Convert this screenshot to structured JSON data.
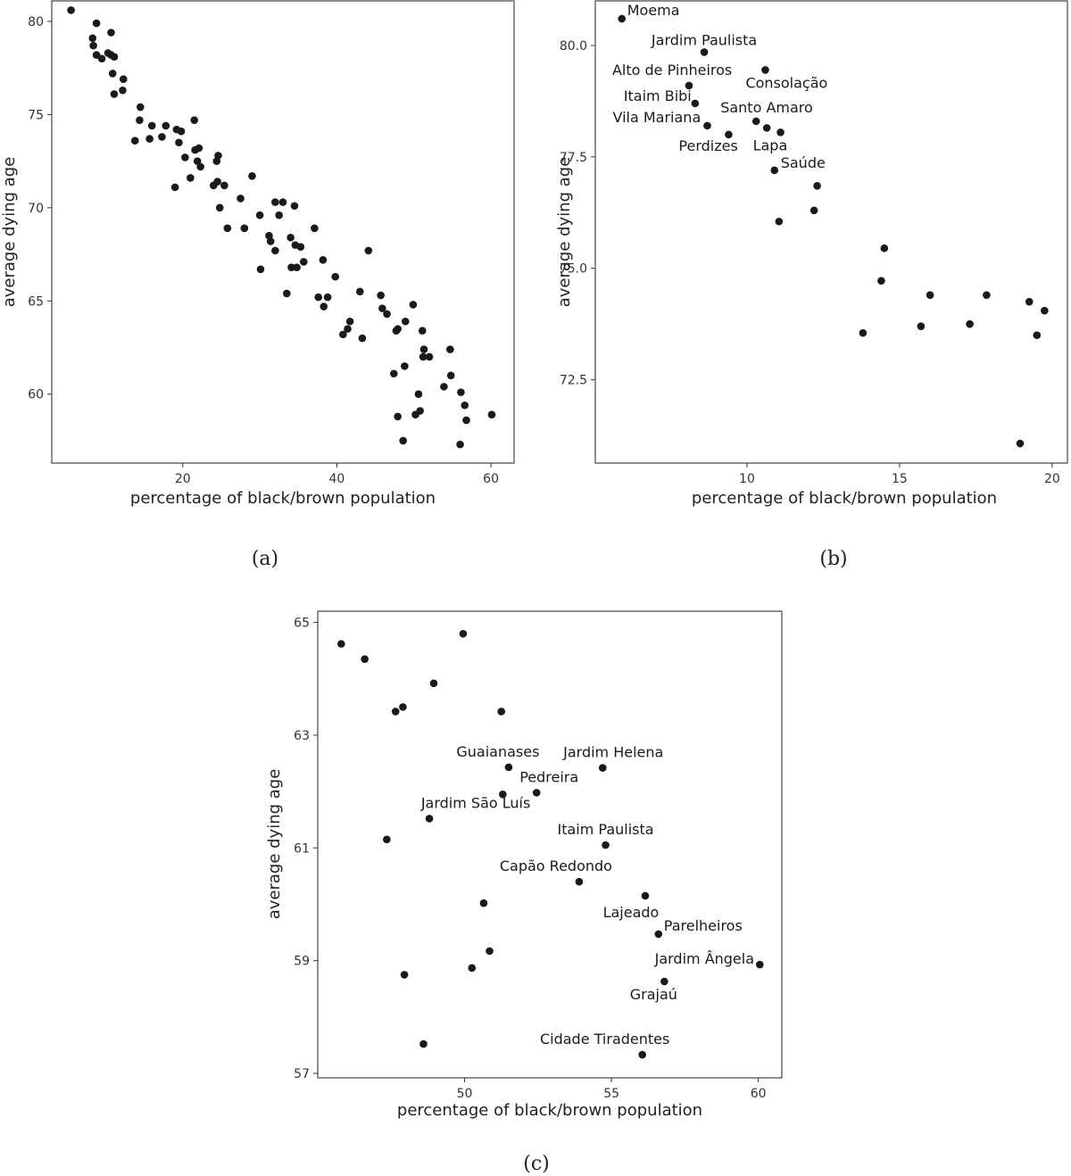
{
  "chart_data": [
    {
      "panel": "(a)",
      "type": "scatter",
      "xlabel": "percentage of black/brown population",
      "ylabel": "average dying age",
      "xlim": [
        3,
        63
      ],
      "ylim": [
        56.3,
        81.1
      ],
      "xticks": [
        20,
        40,
        60
      ],
      "yticks": [
        60,
        65,
        70,
        75,
        80
      ],
      "grid": false,
      "points": [
        {
          "x": 5.5,
          "y": 80.6
        },
        {
          "x": 8.3,
          "y": 79.1
        },
        {
          "x": 8.8,
          "y": 79.9
        },
        {
          "x": 10.7,
          "y": 79.4
        },
        {
          "x": 8.4,
          "y": 78.7
        },
        {
          "x": 8.8,
          "y": 78.2
        },
        {
          "x": 9.5,
          "y": 78.0
        },
        {
          "x": 10.3,
          "y": 78.3
        },
        {
          "x": 10.7,
          "y": 78.2
        },
        {
          "x": 11.1,
          "y": 78.1
        },
        {
          "x": 10.9,
          "y": 77.2
        },
        {
          "x": 12.3,
          "y": 76.9
        },
        {
          "x": 12.2,
          "y": 76.3
        },
        {
          "x": 11.1,
          "y": 76.1
        },
        {
          "x": 14.5,
          "y": 75.4
        },
        {
          "x": 14.4,
          "y": 74.7
        },
        {
          "x": 13.8,
          "y": 73.6
        },
        {
          "x": 16.0,
          "y": 74.4
        },
        {
          "x": 15.7,
          "y": 73.7
        },
        {
          "x": 17.3,
          "y": 73.8
        },
        {
          "x": 17.8,
          "y": 74.4
        },
        {
          "x": 19.2,
          "y": 74.2
        },
        {
          "x": 19.5,
          "y": 73.5
        },
        {
          "x": 19.8,
          "y": 74.1
        },
        {
          "x": 21.5,
          "y": 74.7
        },
        {
          "x": 21.6,
          "y": 73.1
        },
        {
          "x": 22.1,
          "y": 73.2
        },
        {
          "x": 20.3,
          "y": 72.7
        },
        {
          "x": 21.9,
          "y": 72.5
        },
        {
          "x": 22.3,
          "y": 72.2
        },
        {
          "x": 24.4,
          "y": 72.5
        },
        {
          "x": 24.6,
          "y": 72.8
        },
        {
          "x": 19.0,
          "y": 71.1
        },
        {
          "x": 21.0,
          "y": 71.6
        },
        {
          "x": 24.0,
          "y": 71.2
        },
        {
          "x": 24.5,
          "y": 71.4
        },
        {
          "x": 25.4,
          "y": 71.2
        },
        {
          "x": 24.8,
          "y": 70.0
        },
        {
          "x": 27.5,
          "y": 70.5
        },
        {
          "x": 29.0,
          "y": 71.7
        },
        {
          "x": 25.8,
          "y": 68.9
        },
        {
          "x": 28.0,
          "y": 68.9
        },
        {
          "x": 30.0,
          "y": 69.6
        },
        {
          "x": 32.0,
          "y": 70.3
        },
        {
          "x": 32.5,
          "y": 69.6
        },
        {
          "x": 33.0,
          "y": 70.3
        },
        {
          "x": 34.5,
          "y": 70.1
        },
        {
          "x": 31.2,
          "y": 68.5
        },
        {
          "x": 31.4,
          "y": 68.2
        },
        {
          "x": 32.0,
          "y": 67.7
        },
        {
          "x": 34.0,
          "y": 68.4
        },
        {
          "x": 34.6,
          "y": 68.0
        },
        {
          "x": 35.3,
          "y": 67.9
        },
        {
          "x": 37.1,
          "y": 68.9
        },
        {
          "x": 35.7,
          "y": 67.1
        },
        {
          "x": 30.1,
          "y": 66.7
        },
        {
          "x": 34.1,
          "y": 66.8
        },
        {
          "x": 34.8,
          "y": 66.8
        },
        {
          "x": 38.2,
          "y": 67.2
        },
        {
          "x": 39.8,
          "y": 66.3
        },
        {
          "x": 44.1,
          "y": 67.7
        },
        {
          "x": 33.5,
          "y": 65.4
        },
        {
          "x": 37.6,
          "y": 65.2
        },
        {
          "x": 38.3,
          "y": 64.7
        },
        {
          "x": 38.8,
          "y": 65.2
        },
        {
          "x": 43.0,
          "y": 65.5
        },
        {
          "x": 45.7,
          "y": 65.3
        },
        {
          "x": 46.5,
          "y": 64.3
        },
        {
          "x": 45.9,
          "y": 64.6
        },
        {
          "x": 49.9,
          "y": 64.8
        },
        {
          "x": 40.8,
          "y": 63.2
        },
        {
          "x": 41.4,
          "y": 63.5
        },
        {
          "x": 41.7,
          "y": 63.9
        },
        {
          "x": 43.3,
          "y": 63.0
        },
        {
          "x": 47.7,
          "y": 63.4
        },
        {
          "x": 47.9,
          "y": 63.5
        },
        {
          "x": 48.9,
          "y": 63.9
        },
        {
          "x": 51.1,
          "y": 63.4
        },
        {
          "x": 51.3,
          "y": 62.4
        },
        {
          "x": 51.2,
          "y": 62.0
        },
        {
          "x": 52.0,
          "y": 62.0
        },
        {
          "x": 54.7,
          "y": 62.4
        },
        {
          "x": 47.4,
          "y": 61.1
        },
        {
          "x": 48.8,
          "y": 61.5
        },
        {
          "x": 54.8,
          "y": 61.0
        },
        {
          "x": 50.6,
          "y": 60.0
        },
        {
          "x": 53.9,
          "y": 60.4
        },
        {
          "x": 56.1,
          "y": 60.1
        },
        {
          "x": 50.8,
          "y": 59.1
        },
        {
          "x": 50.2,
          "y": 58.9
        },
        {
          "x": 56.6,
          "y": 59.4
        },
        {
          "x": 47.9,
          "y": 58.8
        },
        {
          "x": 56.8,
          "y": 58.6
        },
        {
          "x": 60.1,
          "y": 58.9
        },
        {
          "x": 48.6,
          "y": 57.5
        },
        {
          "x": 56.0,
          "y": 57.3
        }
      ]
    },
    {
      "panel": "(b)",
      "type": "scatter",
      "xlabel": "percentage of black/brown population",
      "ylabel": "average dying age",
      "xlim": [
        5.03,
        20.5
      ],
      "ylim": [
        70.63,
        81.0
      ],
      "xticks": [
        10,
        15,
        20
      ],
      "yticks": [
        72.5,
        75.0,
        77.5,
        80.0
      ],
      "yticklabels": [
        "72.5",
        "75.0",
        "77.5",
        "80.0"
      ],
      "grid": false,
      "points": [
        {
          "x": 5.9,
          "y": 80.6,
          "label": "Moema",
          "dx": 6,
          "dy": -4,
          "anchor": "start"
        },
        {
          "x": 8.6,
          "y": 79.85,
          "label": "Jardim Paulista",
          "dx": 0,
          "dy": -8,
          "anchor": "middle"
        },
        {
          "x": 10.6,
          "y": 79.45,
          "label": "Consolação",
          "dx": -22,
          "dy": 20,
          "anchor": "start"
        },
        {
          "x": 8.1,
          "y": 79.1,
          "label": "Alto de Pinheiros",
          "dx": -86,
          "dy": -12,
          "anchor": "start"
        },
        {
          "x": 8.3,
          "y": 78.7,
          "label": "Itaim Bibi",
          "dx": -80,
          "dy": -3,
          "anchor": "start"
        },
        {
          "x": 8.7,
          "y": 78.2,
          "label": "Vila Mariana",
          "dx": -106,
          "dy": -4,
          "anchor": "start"
        },
        {
          "x": 10.3,
          "y": 78.3,
          "label": "Santo Amaro",
          "dx": -40,
          "dy": -10,
          "anchor": "start"
        },
        {
          "x": 10.65,
          "y": 78.15,
          "label": null
        },
        {
          "x": 11.1,
          "y": 78.05,
          "label": "Lapa",
          "dx": -31,
          "dy": 20,
          "anchor": "start"
        },
        {
          "x": 9.4,
          "y": 78.0,
          "label": "Perdizes",
          "dx": -56,
          "dy": 18,
          "anchor": "start"
        },
        {
          "x": 10.9,
          "y": 77.2,
          "label": "Saúde",
          "dx": 7,
          "dy": -3,
          "anchor": "start"
        },
        {
          "x": 12.3,
          "y": 76.85,
          "label": null
        },
        {
          "x": 12.2,
          "y": 76.3,
          "label": null
        },
        {
          "x": 11.05,
          "y": 76.05,
          "label": null
        },
        {
          "x": 14.5,
          "y": 75.45,
          "label": null
        },
        {
          "x": 14.4,
          "y": 74.72,
          "label": null
        },
        {
          "x": 16.0,
          "y": 74.4,
          "label": null
        },
        {
          "x": 17.85,
          "y": 74.4,
          "label": null
        },
        {
          "x": 19.25,
          "y": 74.25,
          "label": null
        },
        {
          "x": 19.75,
          "y": 74.05,
          "label": null
        },
        {
          "x": 13.8,
          "y": 73.55,
          "label": null
        },
        {
          "x": 15.7,
          "y": 73.7,
          "label": null
        },
        {
          "x": 17.3,
          "y": 73.75,
          "label": null
        },
        {
          "x": 19.5,
          "y": 73.5,
          "label": null
        },
        {
          "x": 18.95,
          "y": 71.07,
          "label": null
        }
      ]
    },
    {
      "panel": "(c)",
      "type": "scatter",
      "xlabel": "percentage of black/brown population",
      "ylabel": "average dying age",
      "xlim": [
        45.0,
        60.8
      ],
      "ylim": [
        56.92,
        65.2
      ],
      "xticks": [
        50,
        55,
        60
      ],
      "yticks": [
        57,
        59,
        61,
        63,
        65
      ],
      "grid": false,
      "points": [
        {
          "x": 45.8,
          "y": 64.62,
          "label": null
        },
        {
          "x": 46.6,
          "y": 64.35,
          "label": null
        },
        {
          "x": 49.95,
          "y": 64.8,
          "label": null
        },
        {
          "x": 48.95,
          "y": 63.92,
          "label": null
        },
        {
          "x": 47.65,
          "y": 63.42,
          "label": null
        },
        {
          "x": 47.9,
          "y": 63.5,
          "label": null
        },
        {
          "x": 51.25,
          "y": 63.42,
          "label": null
        },
        {
          "x": 51.5,
          "y": 62.43,
          "label": "Guaianases",
          "dx": -12,
          "dy": -12,
          "anchor": "middle"
        },
        {
          "x": 54.7,
          "y": 62.42,
          "label": "Jardim Helena",
          "dx": 12,
          "dy": -12,
          "anchor": "middle"
        },
        {
          "x": 52.45,
          "y": 61.98,
          "label": "Pedreira",
          "dx": 14,
          "dy": -12,
          "anchor": "middle"
        },
        {
          "x": 51.3,
          "y": 61.95,
          "label": null
        },
        {
          "x": 48.8,
          "y": 61.52,
          "label": "Jardim São Luís",
          "dx": 52,
          "dy": -12,
          "anchor": "middle"
        },
        {
          "x": 47.35,
          "y": 61.15,
          "label": null
        },
        {
          "x": 54.8,
          "y": 61.05,
          "label": "Itaim Paulista",
          "dx": 0,
          "dy": -12,
          "anchor": "middle"
        },
        {
          "x": 53.9,
          "y": 60.4,
          "label": "Capão Redondo",
          "dx": -26,
          "dy": -12,
          "anchor": "middle"
        },
        {
          "x": 56.15,
          "y": 60.15,
          "label": "Lajeado",
          "dx": -16,
          "dy": 24,
          "anchor": "middle"
        },
        {
          "x": 50.65,
          "y": 60.02,
          "label": null
        },
        {
          "x": 56.6,
          "y": 59.47,
          "label": "Parelheiros",
          "dx": 6,
          "dy": -4,
          "anchor": "start"
        },
        {
          "x": 50.85,
          "y": 59.17,
          "label": null
        },
        {
          "x": 60.05,
          "y": 58.93,
          "label": "Jardim Ângela",
          "dx": -62,
          "dy": -1,
          "anchor": "middle"
        },
        {
          "x": 50.25,
          "y": 58.87,
          "label": null
        },
        {
          "x": 47.95,
          "y": 58.75,
          "label": null
        },
        {
          "x": 56.8,
          "y": 58.63,
          "label": "Grajaú",
          "dx": -12,
          "dy": 20,
          "anchor": "middle"
        },
        {
          "x": 48.6,
          "y": 57.52,
          "label": null
        },
        {
          "x": 56.05,
          "y": 57.33,
          "label": "Cidade Tiradentes",
          "dx": -42,
          "dy": -12,
          "anchor": "middle"
        }
      ]
    }
  ]
}
